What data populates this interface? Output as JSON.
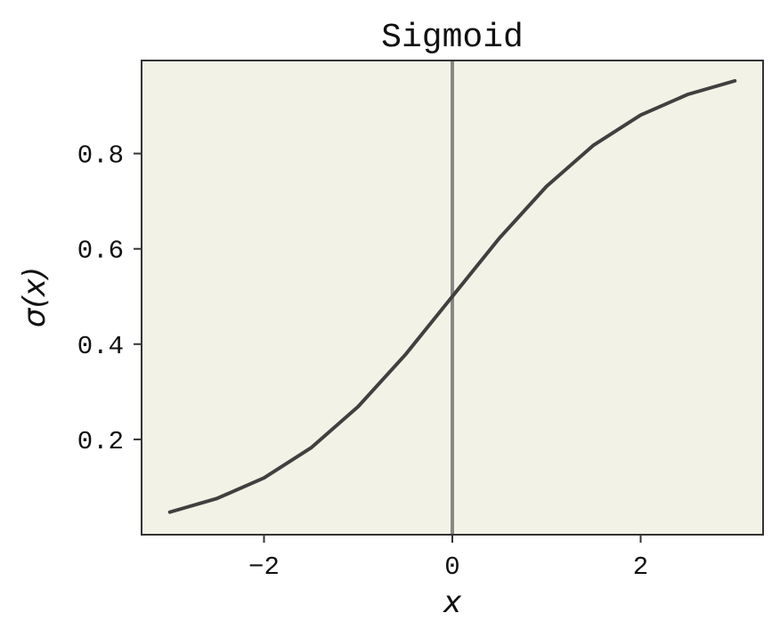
{
  "chart_data": {
    "type": "line",
    "title": "Sigmoid",
    "xlabel": "x",
    "ylabel": "σ(x)",
    "xlim": [
      -3.3,
      3.3
    ],
    "ylim": [
      0.0,
      0.9953
    ],
    "x_ticks": [
      -2,
      0,
      2
    ],
    "x_tick_labels": [
      "−2",
      "0",
      "2"
    ],
    "y_ticks": [
      0.2,
      0.4,
      0.6,
      0.8
    ],
    "y_tick_labels": [
      "0.2",
      "0.4",
      "0.6",
      "0.8"
    ],
    "grid": false,
    "legend": "none",
    "vertical_reference_line": {
      "x": 0
    },
    "series": [
      {
        "x": [
          -3.0,
          -2.5,
          -2.0,
          -1.5,
          -1.0,
          -0.5,
          0.0,
          0.5,
          1.0,
          1.5,
          2.0,
          2.5,
          3.0
        ],
        "y": [
          0.0474,
          0.0759,
          0.1192,
          0.1824,
          0.2689,
          0.3775,
          0.5,
          0.6225,
          0.7311,
          0.8176,
          0.8808,
          0.9241,
          0.9526
        ]
      }
    ]
  },
  "colors": {
    "plot_background": "#f2f2e6",
    "line": "#404040",
    "reference_line": "#888888",
    "axes": "#333333",
    "text": "#111111"
  }
}
